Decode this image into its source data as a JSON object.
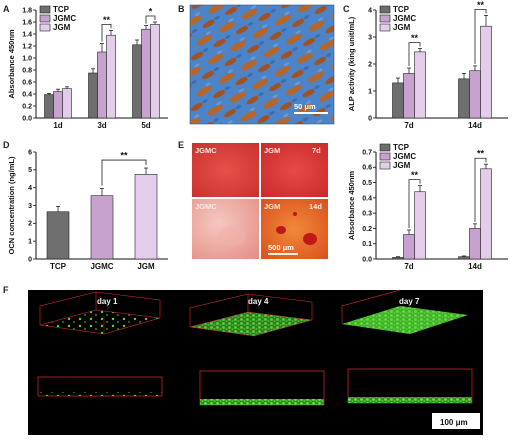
{
  "figure": {
    "panel_labels": [
      "A",
      "B",
      "C",
      "D",
      "E",
      "F"
    ],
    "colors": {
      "TCP": "#6e6e6e",
      "JGMC": "#c8a2cf",
      "JGM": "#e4cdea",
      "confocal_bg": "#000000",
      "frame": "#e0302c",
      "cells": "#5ad53c"
    }
  },
  "panel_B": {
    "scale_text": "50 μm"
  },
  "panel_E": {
    "images": [
      {
        "label": "JGMC",
        "time": ""
      },
      {
        "label": "JGM",
        "time": "7d"
      },
      {
        "label": "JGMC",
        "time": ""
      },
      {
        "label": "JGM",
        "time": "14d"
      }
    ],
    "scale_text": "500 μm"
  },
  "panel_F": {
    "days": [
      "day 1",
      "day 4",
      "day 7"
    ],
    "scale_text": "100 μm"
  },
  "chart_data": [
    {
      "panel": "A",
      "type": "bar",
      "categories": [
        "1d",
        "3d",
        "5d"
      ],
      "series": [
        {
          "name": "TCP",
          "values": [
            0.39,
            0.75,
            1.22
          ],
          "errors": [
            0.02,
            0.07,
            0.08
          ]
        },
        {
          "name": "JGMC",
          "values": [
            0.44,
            1.1,
            1.48
          ],
          "errors": [
            0.04,
            0.14,
            0.06
          ]
        },
        {
          "name": "JGM",
          "values": [
            0.49,
            1.38,
            1.56
          ],
          "errors": [
            0.03,
            0.08,
            0.04
          ]
        }
      ],
      "ylabel": "Absorbance 450nm",
      "ylim": [
        0,
        1.8
      ],
      "yticks": [
        "0.0",
        "0.2",
        "0.4",
        "0.6",
        "0.8",
        "1.0",
        "1.2",
        "1.4",
        "1.6",
        "1.8"
      ],
      "significance": [
        {
          "category": "3d",
          "text": "**"
        },
        {
          "category": "5d",
          "text": "*"
        }
      ],
      "legend": "top-left"
    },
    {
      "panel": "C",
      "type": "bar",
      "categories": [
        "7d",
        "14d"
      ],
      "series": [
        {
          "name": "TCP",
          "values": [
            1.3,
            1.45
          ],
          "errors": [
            0.18,
            0.2
          ]
        },
        {
          "name": "JGMC",
          "values": [
            1.65,
            1.75
          ],
          "errors": [
            0.2,
            0.18
          ]
        },
        {
          "name": "JGM",
          "values": [
            2.45,
            3.4
          ],
          "errors": [
            0.12,
            0.4
          ]
        }
      ],
      "ylabel": "ALP activity (king unit/mL)",
      "ylim": [
        0,
        4
      ],
      "yticks": [
        "0",
        "1",
        "2",
        "3",
        "4"
      ],
      "significance": [
        {
          "category": "7d",
          "text": "**"
        },
        {
          "category": "14d",
          "text": "**"
        }
      ],
      "legend": "top-left"
    },
    {
      "panel": "D",
      "type": "bar",
      "categories": [
        "TCP",
        "JGMC",
        "JGM"
      ],
      "series": [
        {
          "name": "",
          "values": [
            2.65,
            3.55,
            4.75
          ],
          "errors": [
            0.3,
            0.4,
            0.35
          ]
        }
      ],
      "colors": [
        "#6e6e6e",
        "#c8a2cf",
        "#e4cdea"
      ],
      "ylabel": "OCN concentration (ng/mL)",
      "ylim": [
        0,
        6
      ],
      "yticks": [
        "0",
        "1",
        "2",
        "3",
        "4",
        "5",
        "6"
      ],
      "significance": [
        {
          "from": "JGMC",
          "to": "JGM",
          "text": "**"
        }
      ]
    },
    {
      "panel": "E",
      "type": "bar",
      "categories": [
        "7d",
        "14d"
      ],
      "series": [
        {
          "name": "TCP",
          "values": [
            0.01,
            0.015
          ],
          "errors": [
            0.005,
            0.005
          ]
        },
        {
          "name": "JGMC",
          "values": [
            0.16,
            0.2
          ],
          "errors": [
            0.03,
            0.03
          ]
        },
        {
          "name": "JGM",
          "values": [
            0.44,
            0.59
          ],
          "errors": [
            0.04,
            0.03
          ]
        }
      ],
      "ylabel": "Absorbance 450nm",
      "ylim": [
        0,
        0.7
      ],
      "yticks": [
        "0.0",
        "0.1",
        "0.2",
        "0.3",
        "0.4",
        "0.5",
        "0.6",
        "0.7"
      ],
      "significance": [
        {
          "category": "7d",
          "text": "**"
        },
        {
          "category": "14d",
          "text": "**"
        }
      ],
      "legend": "top-left"
    }
  ]
}
